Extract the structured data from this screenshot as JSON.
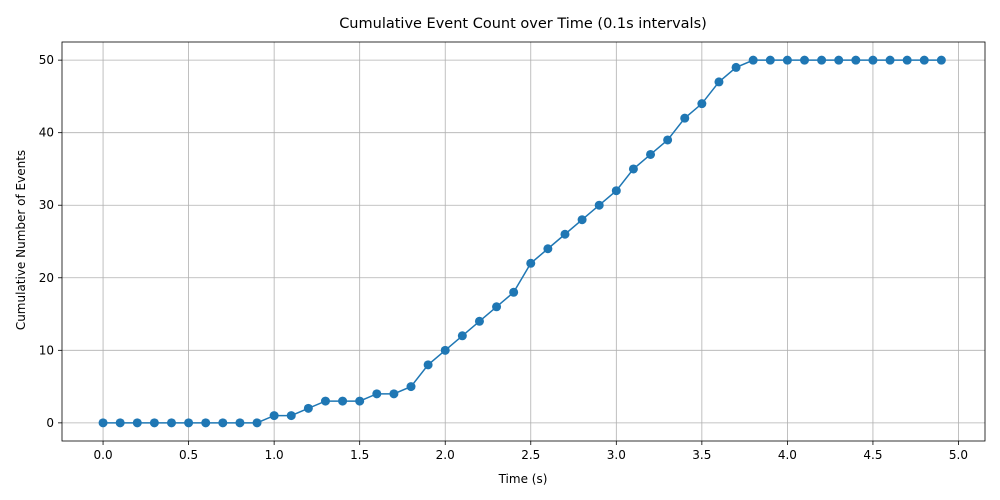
{
  "chart_data": {
    "type": "line",
    "title": "Cumulative Event Count over Time (0.1s intervals)",
    "xlabel": "Time (s)",
    "ylabel": "Cumulative Number of Events",
    "xlim": [
      -0.24,
      5.155
    ],
    "ylim": [
      -2.5,
      52.5
    ],
    "xticks": [
      "0.0",
      "0.5",
      "1.0",
      "1.5",
      "2.0",
      "2.5",
      "3.0",
      "3.5",
      "4.0",
      "4.5",
      "5.0"
    ],
    "yticks": [
      "0",
      "10",
      "20",
      "30",
      "40",
      "50"
    ],
    "grid": true,
    "color": "#1f77b4",
    "marker": "circle",
    "series": [
      {
        "x": [
          0.0,
          0.1,
          0.2,
          0.3,
          0.4,
          0.5,
          0.6,
          0.7,
          0.8,
          0.9,
          1.0,
          1.1,
          1.2,
          1.3,
          1.4,
          1.5,
          1.6,
          1.7,
          1.8,
          1.9,
          2.0,
          2.1,
          2.2,
          2.3,
          2.4,
          2.5,
          2.6,
          2.7,
          2.8,
          2.9,
          3.0,
          3.1,
          3.2,
          3.3,
          3.4,
          3.5,
          3.6,
          3.7,
          3.8,
          3.9,
          4.0,
          4.1,
          4.2,
          4.3,
          4.4,
          4.5,
          4.6,
          4.7,
          4.8,
          4.9
        ],
        "values": [
          0,
          0,
          0,
          0,
          0,
          0,
          0,
          0,
          0,
          0,
          1,
          1,
          2,
          3,
          3,
          3,
          4,
          4,
          5,
          8,
          10,
          12,
          14,
          16,
          18,
          22,
          24,
          26,
          28,
          30,
          32,
          35,
          37,
          39,
          42,
          44,
          47,
          49,
          50,
          50,
          50,
          50,
          50,
          50,
          50,
          50,
          50,
          50,
          50,
          50
        ]
      }
    ]
  }
}
